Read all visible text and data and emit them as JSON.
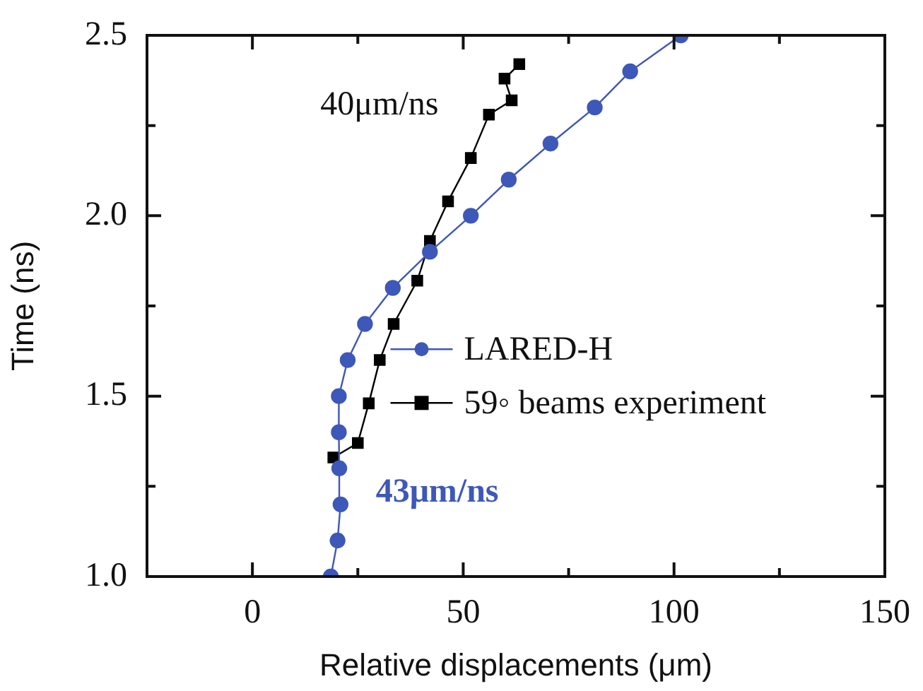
{
  "chart_data": {
    "type": "line",
    "xlabel": "Relative displacements (μm)",
    "ylabel": "Time (ns)",
    "xlim": [
      -25,
      150
    ],
    "xticks": [
      0,
      {
        "value": 25,
        "label": null
      },
      50,
      {
        "value": 75,
        "label": null
      },
      100,
      {
        "value": 125,
        "label": null
      },
      150
    ],
    "ylim": [
      1,
      2.5
    ],
    "yticks": [
      {
        "value": 1,
        "label": "1.0"
      },
      {
        "value": 1.25,
        "label": null
      },
      1.5,
      {
        "value": 1.75,
        "label": null
      },
      {
        "value": 2,
        "label": "2.0"
      },
      {
        "value": 2.25,
        "label": null
      },
      2.5
    ],
    "grid": false,
    "legend": "right",
    "line_style": "solid",
    "annotations": [
      "40μm/ns",
      "43μm/ns"
    ],
    "series": [
      {
        "name": "LARED-H",
        "color": "#3d58b8",
        "marker": "circle",
        "x": [
          18.6,
          20.2,
          20.9,
          20.6,
          20.5,
          20.5,
          22.6,
          26.7,
          33.3,
          42.1,
          51.8,
          60.8,
          70.7,
          81.2,
          89.6,
          101.6
        ],
        "values": [
          1.0,
          1.1,
          1.2,
          1.3,
          1.4,
          1.5,
          1.6,
          1.7,
          1.8,
          1.9,
          2.0,
          2.1,
          2.2,
          2.3,
          2.4,
          2.5
        ]
      },
      {
        "name": "59◦ beams experiment",
        "color": "#000000",
        "marker": "square",
        "x": [
          19.2,
          25.0,
          27.6,
          30.2,
          33.5,
          39.1,
          42.1,
          46.4,
          51.8,
          56.1,
          61.5,
          59.8,
          63.3
        ],
        "values": [
          1.33,
          1.37,
          1.48,
          1.6,
          1.7,
          1.82,
          1.93,
          2.04,
          2.16,
          2.28,
          2.32,
          2.38,
          2.42
        ]
      }
    ]
  }
}
